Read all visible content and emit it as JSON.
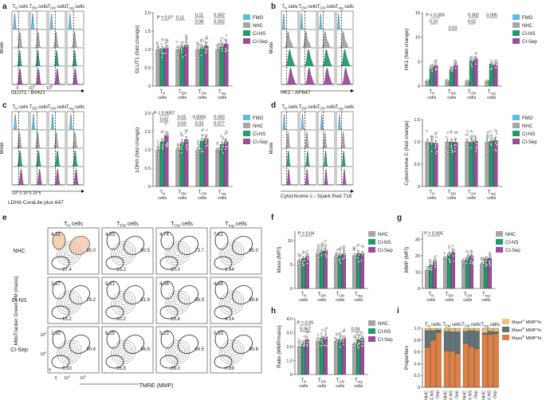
{
  "colors": {
    "FMO": "#5bbde8",
    "NHC": "#a6a6a6",
    "CI-NS": "#1f9b6f",
    "CI-Sep": "#9b4c9c",
    "mass_lo_mmp_lo": "#e8c47e",
    "mass_hi_mmp_lo": "#5f7379",
    "mass_hi_mmp_hi": "#de7f44",
    "gate_NHC": "#f2c9a0"
  },
  "panel_letters": [
    "a",
    "b",
    "c",
    "d",
    "e",
    "f",
    "g",
    "h",
    "i"
  ],
  "common": {
    "y_mode": "Mode",
    "pop_labels": [
      "T_N cells",
      "T_EM cells",
      "T_CM cells",
      "T_reg cells"
    ],
    "legend4": [
      "FMO",
      "NHC",
      "CI-NS",
      "CI-Sep"
    ],
    "legend3": [
      "NHC",
      "CI-NS",
      "CI-Sep"
    ],
    "cells_word": "cells"
  },
  "panel_a": {
    "x_label": "GLUT1 - BV421",
    "ticks": [
      "0",
      "10^3",
      "10^5"
    ],
    "y_label": "GLUT1 (fold change)",
    "y_ticks": [
      "0",
      "0.5",
      "1.0",
      "1.5",
      "2.0"
    ],
    "stats": [
      [
        "P = 0.07",
        "0.11"
      ],
      [
        "0.11",
        "0.08"
      ],
      [
        "0.002",
        "0.002"
      ]
    ]
  },
  "panel_b": {
    "x_label": "HK1 - AF647",
    "y_label": "HK1 (fold change)",
    "y_ticks": [
      "0",
      "5",
      "10",
      "15"
    ],
    "stats": [
      [
        "P = 0.005",
        "0.10"
      ],
      [
        "0.03"
      ],
      [
        "0.002",
        "0.02"
      ],
      [
        "0.005"
      ]
    ]
  },
  "panel_c": {
    "x_label": "LDHA CoraLite plus 647",
    "ticks": [
      "-10^3",
      "0",
      "10^3",
      "10^5"
    ],
    "y_label": "LDHA (fold change)",
    "y_ticks": [
      "0",
      "0.5",
      "1.0",
      "1.5",
      "2.0"
    ],
    "stats": [
      [
        "P = 0.0007",
        "0.02"
      ],
      [
        "0.02",
        "0.03"
      ],
      [
        "0.0006",
        "0.03"
      ],
      [
        "0.003",
        "0.073"
      ],
      [
        "0.002"
      ],
      [
        "0.077"
      ]
    ]
  },
  "panel_d": {
    "x_label": "Cytochrome c - Spark Red 718",
    "y_label": "Cytochrome C (fold change)",
    "y_ticks": [
      "0",
      "0.5",
      "1.0",
      "1.5"
    ]
  },
  "panel_e": {
    "x_label": "TMRE (MMP)",
    "y_label": "MitoTracker Green FM (mass)",
    "x_ticks": [
      "0",
      "10^3",
      "10^5"
    ],
    "y_ticks": [
      "0",
      "10^3",
      "10^5"
    ],
    "row_labels": [
      "NHC",
      "CI-NS",
      "CI-Sep"
    ],
    "gate_values": [
      [
        [
          "4.31",
          "65.0",
          "27.4"
        ],
        [
          "4.93",
          "60.5",
          "33.2"
        ],
        [
          "4.74",
          "73.7",
          "20.0"
        ],
        [
          "7.61",
          "90.0",
          "1.44"
        ]
      ],
      [
        [
          "3.87",
          "78.2",
          "15.2"
        ],
        [
          "5.81",
          "61.9",
          "30.2"
        ],
        [
          "4.36",
          "66.9",
          "26.8"
        ],
        [
          "4.88",
          "88.6",
          "4.14"
        ]
      ],
      [
        [
          "2.90",
          "90.4",
          "3.50"
        ],
        [
          "6.25",
          "56.6",
          "35.8"
        ],
        [
          "5.23",
          "64.5",
          "28.0"
        ],
        [
          "5.93",
          "90.8",
          "0.89"
        ]
      ]
    ]
  },
  "chart_data": [
    {
      "panel": "a",
      "type": "bar",
      "title": "",
      "categories": [
        "T_N cells",
        "T_EM cells",
        "T_CM cells",
        "T_reg cells"
      ],
      "series": [
        {
          "name": "NHC",
          "values": [
            1.0,
            1.0,
            1.0,
            1.0
          ]
        },
        {
          "name": "CI-NS",
          "values": [
            1.02,
            1.05,
            1.03,
            1.08
          ]
        },
        {
          "name": "CI-Sep",
          "values": [
            1.05,
            1.12,
            1.1,
            1.15
          ]
        }
      ],
      "ylabel": "GLUT1 (fold change)",
      "ylim": [
        0,
        2.0
      ]
    },
    {
      "panel": "b",
      "type": "bar",
      "categories": [
        "T_N cells",
        "T_EM cells",
        "T_CM cells",
        "T_reg cells"
      ],
      "series": [
        {
          "name": "NHC",
          "values": [
            1.0,
            1.0,
            1.0,
            1.0
          ]
        },
        {
          "name": "CI-NS",
          "values": [
            3.8,
            3.3,
            5.2,
            4.5
          ]
        },
        {
          "name": "CI-Sep",
          "values": [
            4.2,
            4.3,
            5.5,
            4.3
          ]
        }
      ],
      "ylabel": "HK1 (fold change)",
      "ylim": [
        0,
        15
      ]
    },
    {
      "panel": "c",
      "type": "bar",
      "categories": [
        "T_N cells",
        "T_EM cells",
        "T_CM cells",
        "T_reg cells"
      ],
      "series": [
        {
          "name": "NHC",
          "values": [
            1.0,
            1.0,
            1.0,
            1.0
          ]
        },
        {
          "name": "CI-NS",
          "values": [
            1.22,
            1.2,
            1.25,
            1.15
          ]
        },
        {
          "name": "CI-Sep",
          "values": [
            1.4,
            1.28,
            1.3,
            1.22
          ]
        }
      ],
      "ylabel": "LDHA (fold change)",
      "ylim": [
        0,
        2.0
      ]
    },
    {
      "panel": "d",
      "type": "bar",
      "categories": [
        "T_N cells",
        "T_EM cells",
        "T_CM cells",
        "T_reg cells"
      ],
      "series": [
        {
          "name": "NHC",
          "values": [
            1.0,
            1.0,
            1.0,
            1.0
          ]
        },
        {
          "name": "CI-NS",
          "values": [
            0.98,
            1.0,
            1.0,
            1.02
          ]
        },
        {
          "name": "CI-Sep",
          "values": [
            0.97,
            0.99,
            1.02,
            1.03
          ]
        }
      ],
      "ylabel": "Cytochrome C (fold change)",
      "ylim": [
        0,
        1.5
      ]
    },
    {
      "panel": "f",
      "type": "bar",
      "categories": [
        "T_N cells",
        "T_EM cells",
        "T_CM cells",
        "T_reg cells"
      ],
      "series": [
        {
          "name": "NHC",
          "values": [
            5.8,
            7.3,
            6.6,
            6.9
          ]
        },
        {
          "name": "CI-NS",
          "values": [
            6.3,
            7.8,
            7.0,
            7.3
          ]
        },
        {
          "name": "CI-Sep",
          "values": [
            6.6,
            8.0,
            7.2,
            7.3
          ]
        }
      ],
      "ylabel": "Mass (MFI)",
      "y_ticks": [
        "0",
        "5",
        "10"
      ],
      "ylim": [
        0,
        12
      ],
      "stats": [
        [
          "P = 0.04"
        ]
      ]
    },
    {
      "panel": "g",
      "type": "bar",
      "categories": [
        "T_N cells",
        "T_EM cells",
        "T_CM cells",
        "T_reg cells"
      ],
      "series": [
        {
          "name": "NHC",
          "values": [
            11.0,
            18.5,
            17.0,
            15.0
          ]
        },
        {
          "name": "CI-NS",
          "values": [
            14.0,
            21.0,
            19.0,
            18.0
          ]
        },
        {
          "name": "CI-Sep",
          "values": [
            16.5,
            22.0,
            20.0,
            18.5
          ]
        }
      ],
      "ylabel": "MMP (MFI)",
      "y_ticks": [
        "0",
        "10",
        "20",
        "30"
      ],
      "ylim": [
        0,
        35
      ],
      "stats": [
        [
          "P = 0.005"
        ]
      ]
    },
    {
      "panel": "h",
      "type": "bar",
      "categories": [
        "T_N cells",
        "T_EM cells",
        "T_CM cells",
        "T_reg cells"
      ],
      "series": [
        {
          "name": "NHC",
          "values": [
            2.0,
            2.4,
            2.4,
            2.2
          ]
        },
        {
          "name": "CI-NS",
          "values": [
            2.2,
            2.6,
            2.5,
            2.5
          ]
        },
        {
          "name": "CI-Sep",
          "values": [
            2.5,
            2.7,
            2.6,
            2.6
          ]
        }
      ],
      "ylabel": "Ratio (MMP/mass)",
      "y_ticks": [
        "0",
        "1.0",
        "2.0",
        "3.0",
        "4.0"
      ],
      "ylim": [
        0,
        4.0
      ],
      "stats": [
        [
          "P = 0.05",
          "0.067"
        ],
        [
          "0.04"
        ]
      ]
    },
    {
      "panel": "i",
      "type": "bar",
      "stacked": true,
      "groups": [
        "T_N cells",
        "T_EM cells",
        "T_CM cells",
        "T_reg cells"
      ],
      "categories": [
        "NHC",
        "CI-NS",
        "CI-Sep"
      ],
      "legend": [
        "Mass^lo MMP^lo",
        "Mass^hi MMP^lo",
        "Mass^hi MMP^hi"
      ],
      "ylabel": "Proportion",
      "y_ticks": [
        "0",
        "0.2",
        "0.4",
        "0.6",
        "0.8",
        "1.0"
      ],
      "ylim": [
        0,
        1.0
      ],
      "stacks": [
        [
          [
            0.04,
            0.28,
            0.68
          ],
          [
            0.04,
            0.16,
            0.8
          ],
          [
            0.03,
            0.04,
            0.93
          ]
        ],
        [
          [
            0.05,
            0.33,
            0.62
          ],
          [
            0.06,
            0.32,
            0.62
          ],
          [
            0.06,
            0.37,
            0.57
          ]
        ],
        [
          [
            0.05,
            0.2,
            0.75
          ],
          [
            0.04,
            0.27,
            0.69
          ],
          [
            0.05,
            0.29,
            0.66
          ]
        ],
        [
          [
            0.08,
            0.02,
            0.9
          ],
          [
            0.05,
            0.05,
            0.9
          ],
          [
            0.06,
            0.03,
            0.91
          ]
        ]
      ]
    }
  ]
}
